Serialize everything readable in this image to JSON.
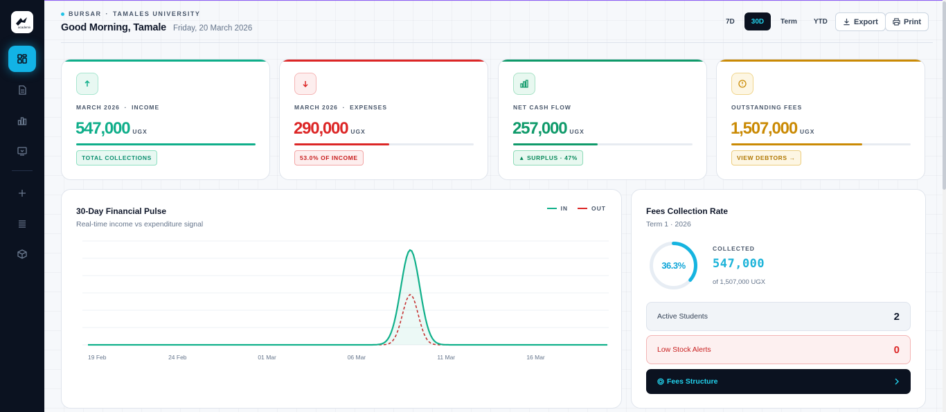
{
  "sidebar": {
    "logo_text": "academic core",
    "items": [
      {
        "icon": "dashboard-icon",
        "active": true
      },
      {
        "icon": "document-icon"
      },
      {
        "icon": "chart-icon"
      },
      {
        "icon": "monitor-icon"
      },
      {
        "icon": "plus-icon"
      },
      {
        "icon": "list-icon"
      },
      {
        "icon": "box-icon"
      }
    ]
  },
  "header": {
    "role": "BURSAR",
    "separator": "·",
    "institution": "TAMALES UNIVERSITY",
    "greeting": "Good Morning, Tamale",
    "date": "Friday, 20 March 2026",
    "periods": [
      "7D",
      "30D",
      "Term",
      "YTD"
    ],
    "selected_period": "30D",
    "export_label": "Export",
    "print_label": "Print"
  },
  "kpis": [
    {
      "label": "MARCH 2026  ·  INCOME",
      "value": "547,000",
      "currency": "UGX",
      "badge": "TOTAL COLLECTIONS",
      "progress": 1.0,
      "accent": "#0fae8a",
      "icon": "arrow-up-icon"
    },
    {
      "label": "MARCH 2026  ·  EXPENSES",
      "value": "290,000",
      "currency": "UGX",
      "badge": "53.0% OF INCOME",
      "progress": 0.53,
      "accent": "#dc2626",
      "icon": "arrow-down-icon"
    },
    {
      "label": "NET CASH FLOW",
      "value": "257,000",
      "currency": "UGX",
      "badge": "▲ SURPLUS · 47%",
      "progress": 0.47,
      "accent": "#0f9a6a",
      "icon": "bar-chart-icon"
    },
    {
      "label": "OUTSTANDING FEES",
      "value": "1,507,000",
      "currency": "UGX",
      "badge": "VIEW DEBTORS →",
      "progress": 0.73,
      "accent": "#ca8a04",
      "icon": "alert-circle-icon"
    }
  ],
  "chart": {
    "title": "30-Day Financial Pulse",
    "subtitle": "Real-time income vs expenditure signal",
    "legend_in": "IN",
    "legend_out": "OUT",
    "color_in": "#10b08a",
    "color_out": "#dc2626"
  },
  "chart_data": {
    "type": "line",
    "x": [
      "19 Feb",
      "24 Feb",
      "01 Mar",
      "06 Mar",
      "11 Mar",
      "16 Mar"
    ],
    "x_ticks": [
      "19 Feb",
      "24 Feb",
      "01 Mar",
      "06 Mar",
      "11 Mar",
      "16 Mar"
    ],
    "series": [
      {
        "name": "IN",
        "peak_day": "09 Mar",
        "peak_value": 547000,
        "baseline": 0
      },
      {
        "name": "OUT",
        "peak_day": "09 Mar",
        "peak_value": 290000,
        "baseline": 0
      }
    ],
    "grid": true,
    "legend": "top-right"
  },
  "fees": {
    "title": "Fees Collection Rate",
    "subtitle": "Term 1 · 2026",
    "rate": 0.363,
    "rate_text": "36.3%",
    "collected_label": "COLLECTED",
    "collected_value": "547,000",
    "collected_of": "of 1,507,000 UGX",
    "active_students_label": "Active Students",
    "active_students_value": "2",
    "low_stock_label": "Low Stock Alerts",
    "low_stock_value": "0",
    "structure_label": "Fees Structure"
  }
}
